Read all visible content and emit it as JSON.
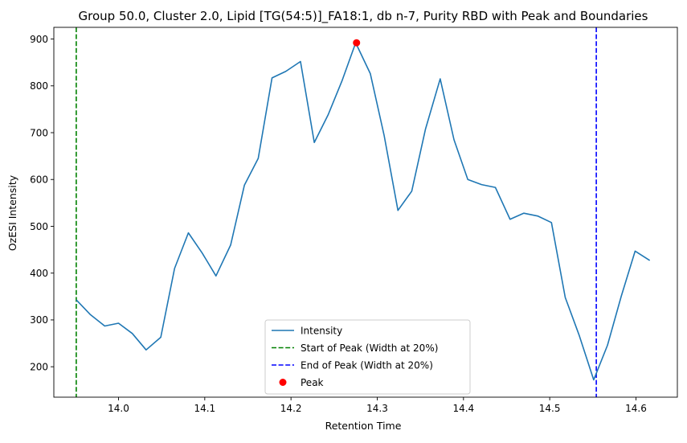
{
  "chart_data": {
    "type": "line",
    "title": "Group 50.0, Cluster 2.0, Lipid [TG(54:5)]_FA18:1, db n-7, Purity RBD with Peak and Boundaries",
    "xlabel": "Retention Time",
    "ylabel": "OzESI Intensity",
    "xlim": [
      13.925,
      14.648
    ],
    "ylim": [
      135,
      925
    ],
    "xticks": [
      14.0,
      14.1,
      14.2,
      14.3,
      14.4,
      14.5,
      14.6
    ],
    "xtick_labels": [
      "14.0",
      "14.1",
      "14.2",
      "14.3",
      "14.4",
      "14.5",
      "14.6"
    ],
    "yticks": [
      200,
      300,
      400,
      500,
      600,
      700,
      800,
      900
    ],
    "ytick_labels": [
      "200",
      "300",
      "400",
      "500",
      "600",
      "700",
      "800",
      "900"
    ],
    "grid": false,
    "legend_position": "bottom-center",
    "series": [
      {
        "name": "Intensity",
        "color": "#1f77b4",
        "x": [
          13.951,
          13.967,
          13.984,
          14.0,
          14.016,
          14.032,
          14.049,
          14.065,
          14.081,
          14.097,
          14.113,
          14.13,
          14.146,
          14.162,
          14.178,
          14.194,
          14.211,
          14.227,
          14.243,
          14.259,
          14.275,
          14.292,
          14.308,
          14.324,
          14.34,
          14.356,
          14.373,
          14.389,
          14.405,
          14.421,
          14.437,
          14.454,
          14.47,
          14.486,
          14.502,
          14.518,
          14.534,
          14.551,
          14.567,
          14.583,
          14.599,
          14.616
        ],
        "y": [
          343,
          312,
          287,
          293,
          271,
          236,
          263,
          410,
          486,
          443,
          394,
          460,
          588,
          645,
          817,
          831,
          852,
          679,
          738,
          810,
          892,
          826,
          694,
          534,
          575,
          708,
          815,
          685,
          600,
          589,
          583,
          515,
          528,
          522,
          508,
          348,
          268,
          172,
          246,
          351,
          447,
          427
        ]
      }
    ],
    "vlines": [
      {
        "name": "Start of Peak (Width at 20%)",
        "x": 13.951,
        "color": "#008000",
        "style": "dashed"
      },
      {
        "name": "End of Peak (Width at 20%)",
        "x": 14.554,
        "color": "#0000ff",
        "style": "dashed"
      }
    ],
    "peak": {
      "name": "Peak",
      "x": 14.276,
      "y": 892,
      "color": "#ff0000"
    }
  }
}
